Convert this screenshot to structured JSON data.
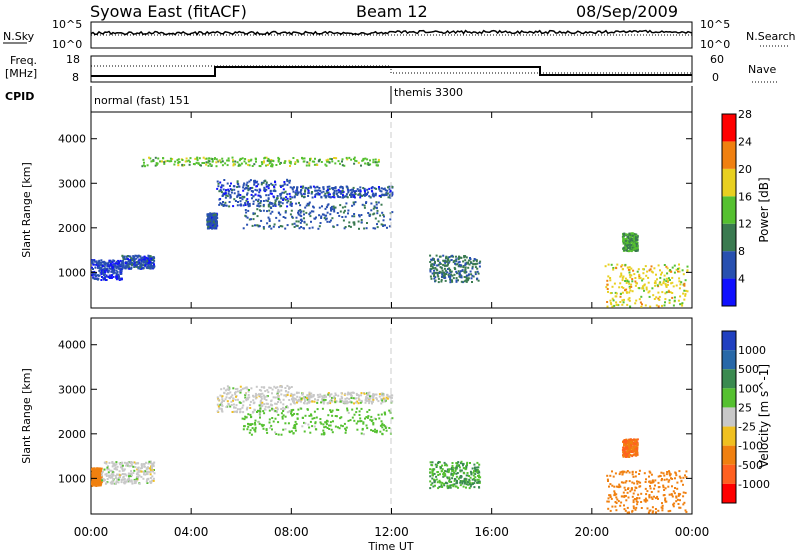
{
  "header": {
    "station": "Syowa East (fitACF)",
    "beam": "Beam 12",
    "date": "08/Sep/2009"
  },
  "strip_labels": {
    "nsky": "N.Sky",
    "nsky_ticks": [
      "10^5",
      "10^0"
    ],
    "nsearch": "N.Search",
    "nsearch_ticks": [
      "10^5",
      "10^0"
    ],
    "freq": "Freq.",
    "freq_unit": "[MHz]",
    "freq_ticks": [
      "18",
      "8"
    ],
    "nave": "Nave",
    "nave_ticks": [
      "60",
      "0"
    ],
    "cpid": "CPID"
  },
  "modes": [
    {
      "label": "normal (fast) 151",
      "start_hour": 0
    },
    {
      "label": "themis 3300",
      "start_hour": 12
    }
  ],
  "chart_data": [
    {
      "type": "heatmap",
      "name": "power",
      "ylabel": "Slant Range [km]",
      "xlabel": "Time UT",
      "xlim": [
        0,
        24
      ],
      "ylim": [
        200,
        4600
      ],
      "x_ticks": [
        "00:00",
        "04:00",
        "08:00",
        "12:00",
        "16:00",
        "20:00",
        "00:00"
      ],
      "y_ticks": [
        1000,
        2000,
        3000,
        4000
      ],
      "colorbar": {
        "label": "Power [dB]",
        "ticks": [
          4,
          8,
          12,
          16,
          20,
          24,
          28
        ],
        "colors": [
          "#1010ff",
          "#2850b0",
          "#3a7a50",
          "#55c030",
          "#e8d020",
          "#f08010",
          "#ff0000"
        ]
      },
      "echo_regions": [
        {
          "t": [
            0.0,
            1.2
          ],
          "range": [
            850,
            1300
          ],
          "power_db": 5
        },
        {
          "t": [
            1.2,
            2.5
          ],
          "range": [
            1100,
            1400
          ],
          "power_db": 6
        },
        {
          "t": [
            4.6,
            5.0
          ],
          "range": [
            2000,
            2350
          ],
          "power_db": 6
        },
        {
          "t": [
            5.0,
            8.0
          ],
          "range": [
            2500,
            3100
          ],
          "power_db": 6
        },
        {
          "t": [
            6.0,
            12.0
          ],
          "range": [
            2000,
            2600
          ],
          "power_db": 7
        },
        {
          "t": [
            8.0,
            12.0
          ],
          "range": [
            2700,
            2950
          ],
          "power_db": 6
        },
        {
          "t": [
            2.0,
            11.5
          ],
          "range": [
            3400,
            3600
          ],
          "power_db": 14
        },
        {
          "t": [
            13.5,
            15.5
          ],
          "range": [
            800,
            1400
          ],
          "power_db": 9
        },
        {
          "t": [
            20.5,
            23.8
          ],
          "range": [
            250,
            1200
          ],
          "power_db": 18
        },
        {
          "t": [
            21.2,
            21.8
          ],
          "range": [
            1500,
            1900
          ],
          "power_db": 12
        }
      ]
    },
    {
      "type": "heatmap",
      "name": "velocity",
      "ylabel": "Slant Range [km]",
      "xlabel": "Time UT",
      "xlim": [
        0,
        24
      ],
      "ylim": [
        200,
        4600
      ],
      "x_ticks": [
        "00:00",
        "04:00",
        "08:00",
        "12:00",
        "16:00",
        "20:00",
        "00:00"
      ],
      "y_ticks": [
        1000,
        2000,
        3000,
        4000
      ],
      "colorbar": {
        "label": "Velocity [m s^-1]",
        "ticks": [
          "1000",
          "500",
          "100",
          "25",
          "-25",
          "-100",
          "-500",
          "-1000"
        ],
        "colors": [
          "#2040c0",
          "#2868a8",
          "#3a8a50",
          "#55c030",
          "#c8c8c8",
          "#f0c020",
          "#f08010",
          "#ff6020",
          "#ff0000"
        ]
      },
      "echo_regions": [
        {
          "t": [
            0.0,
            0.4
          ],
          "range": [
            850,
            1250
          ],
          "velocity": -400
        },
        {
          "t": [
            0.4,
            2.5
          ],
          "range": [
            900,
            1400
          ],
          "velocity": 0
        },
        {
          "t": [
            5.0,
            8.0
          ],
          "range": [
            2500,
            3100
          ],
          "velocity": 0
        },
        {
          "t": [
            6.0,
            12.0
          ],
          "range": [
            2000,
            2600
          ],
          "velocity": 50
        },
        {
          "t": [
            8.0,
            12.0
          ],
          "range": [
            2700,
            2950
          ],
          "velocity": 0
        },
        {
          "t": [
            13.5,
            15.5
          ],
          "range": [
            800,
            1400
          ],
          "velocity": 100
        },
        {
          "t": [
            20.5,
            23.8
          ],
          "range": [
            250,
            1200
          ],
          "velocity": -300
        },
        {
          "t": [
            21.2,
            21.8
          ],
          "range": [
            1500,
            1900
          ],
          "velocity": -500
        }
      ]
    }
  ]
}
